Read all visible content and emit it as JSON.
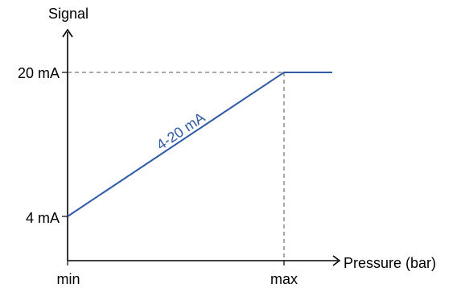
{
  "chart_data": {
    "type": "line",
    "xlabel": "Pressure (bar)",
    "ylabel": "Signal",
    "x_ticks": [
      "min",
      "max"
    ],
    "y_ticks": [
      "4 mA",
      "20 mA"
    ],
    "series": [
      {
        "label": "4-20 mA",
        "points": [
          {
            "x": "min",
            "y": 4
          },
          {
            "x": "max",
            "y": 20
          }
        ],
        "saturation_after_max": 20
      }
    ],
    "reference_lines": [
      {
        "type": "horizontal",
        "y": 20
      },
      {
        "type": "vertical",
        "x": "max"
      }
    ],
    "grid": false,
    "colors": {
      "series": "#2e5aa8",
      "axes": "#000000",
      "reference": "#555555"
    }
  }
}
